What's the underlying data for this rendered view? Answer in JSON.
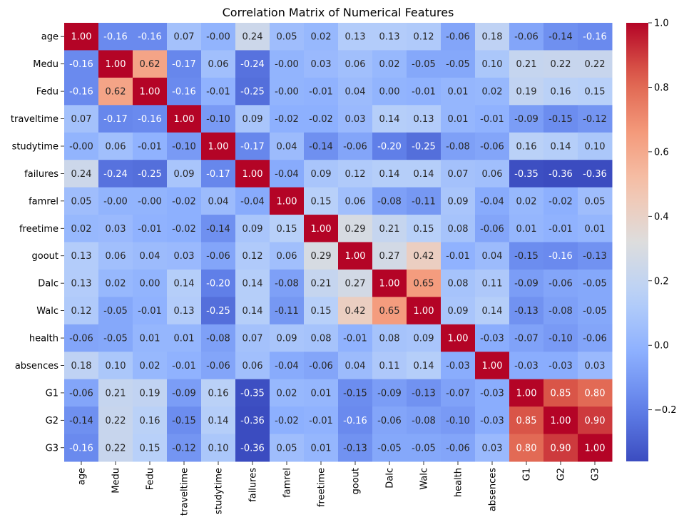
{
  "chart_data": {
    "type": "heatmap",
    "title": "Correlation Matrix of Numerical Features",
    "xlabel": "",
    "ylabel": "",
    "labels": [
      "age",
      "Medu",
      "Fedu",
      "traveltime",
      "studytime",
      "failures",
      "famrel",
      "freetime",
      "goout",
      "Dalc",
      "Walc",
      "health",
      "absences",
      "G1",
      "G2",
      "G3"
    ],
    "values": [
      [
        1.0,
        -0.16,
        -0.16,
        0.07,
        -0.0,
        0.24,
        0.05,
        0.02,
        0.13,
        0.13,
        0.12,
        -0.06,
        0.18,
        -0.06,
        -0.14,
        -0.16
      ],
      [
        -0.16,
        1.0,
        0.62,
        -0.17,
        0.06,
        -0.24,
        -0.0,
        0.03,
        0.06,
        0.02,
        -0.05,
        -0.05,
        0.1,
        0.21,
        0.22,
        0.22
      ],
      [
        -0.16,
        0.62,
        1.0,
        -0.16,
        -0.01,
        -0.25,
        -0.0,
        -0.01,
        0.04,
        0.0,
        -0.01,
        0.01,
        0.02,
        0.19,
        0.16,
        0.15
      ],
      [
        0.07,
        -0.17,
        -0.16,
        1.0,
        -0.1,
        0.09,
        -0.02,
        -0.02,
        0.03,
        0.14,
        0.13,
        0.01,
        -0.01,
        -0.09,
        -0.15,
        -0.12
      ],
      [
        -0.0,
        0.06,
        -0.01,
        -0.1,
        1.0,
        -0.17,
        0.04,
        -0.14,
        -0.06,
        -0.2,
        -0.25,
        -0.08,
        -0.06,
        0.16,
        0.14,
        0.1
      ],
      [
        0.24,
        -0.24,
        -0.25,
        0.09,
        -0.17,
        1.0,
        -0.04,
        0.09,
        0.12,
        0.14,
        0.14,
        0.07,
        0.06,
        -0.35,
        -0.36,
        -0.36
      ],
      [
        0.05,
        -0.0,
        -0.0,
        -0.02,
        0.04,
        -0.04,
        1.0,
        0.15,
        0.06,
        -0.08,
        -0.11,
        0.09,
        -0.04,
        0.02,
        -0.02,
        0.05
      ],
      [
        0.02,
        0.03,
        -0.01,
        -0.02,
        -0.14,
        0.09,
        0.15,
        1.0,
        0.29,
        0.21,
        0.15,
        0.08,
        -0.06,
        0.01,
        -0.01,
        0.01
      ],
      [
        0.13,
        0.06,
        0.04,
        0.03,
        -0.06,
        0.12,
        0.06,
        0.29,
        1.0,
        0.27,
        0.42,
        -0.01,
        0.04,
        -0.15,
        -0.16,
        -0.13
      ],
      [
        0.13,
        0.02,
        0.0,
        0.14,
        -0.2,
        0.14,
        -0.08,
        0.21,
        0.27,
        1.0,
        0.65,
        0.08,
        0.11,
        -0.09,
        -0.06,
        -0.05
      ],
      [
        0.12,
        -0.05,
        -0.01,
        0.13,
        -0.25,
        0.14,
        -0.11,
        0.15,
        0.42,
        0.65,
        1.0,
        0.09,
        0.14,
        -0.13,
        -0.08,
        -0.05
      ],
      [
        -0.06,
        -0.05,
        0.01,
        0.01,
        -0.08,
        0.07,
        0.09,
        0.08,
        -0.01,
        0.08,
        0.09,
        1.0,
        -0.03,
        -0.07,
        -0.1,
        -0.06
      ],
      [
        0.18,
        0.1,
        0.02,
        -0.01,
        -0.06,
        0.06,
        -0.04,
        -0.06,
        0.04,
        0.11,
        0.14,
        -0.03,
        1.0,
        -0.03,
        -0.03,
        0.03
      ],
      [
        -0.06,
        0.21,
        0.19,
        -0.09,
        0.16,
        -0.35,
        0.02,
        0.01,
        -0.15,
        -0.09,
        -0.13,
        -0.07,
        -0.03,
        1.0,
        0.85,
        0.8
      ],
      [
        -0.14,
        0.22,
        0.16,
        -0.15,
        0.14,
        -0.36,
        -0.02,
        -0.01,
        -0.16,
        -0.06,
        -0.08,
        -0.1,
        -0.03,
        0.85,
        1.0,
        0.9
      ],
      [
        -0.16,
        0.22,
        0.15,
        -0.12,
        0.1,
        -0.36,
        0.05,
        0.01,
        -0.13,
        -0.05,
        -0.05,
        -0.06,
        0.03,
        0.8,
        0.9,
        1.0
      ]
    ],
    "colormap": "coolwarm",
    "vmin": -0.36,
    "vmax": 1.0,
    "colorbar_ticks": [
      -0.2,
      0.0,
      0.2,
      0.4,
      0.6,
      0.8,
      1.0
    ],
    "colorbar_tick_labels": [
      "−0.2",
      "0.0",
      "0.2",
      "0.4",
      "0.6",
      "0.8",
      "1.0"
    ],
    "annotation_format": "2 decimals"
  }
}
